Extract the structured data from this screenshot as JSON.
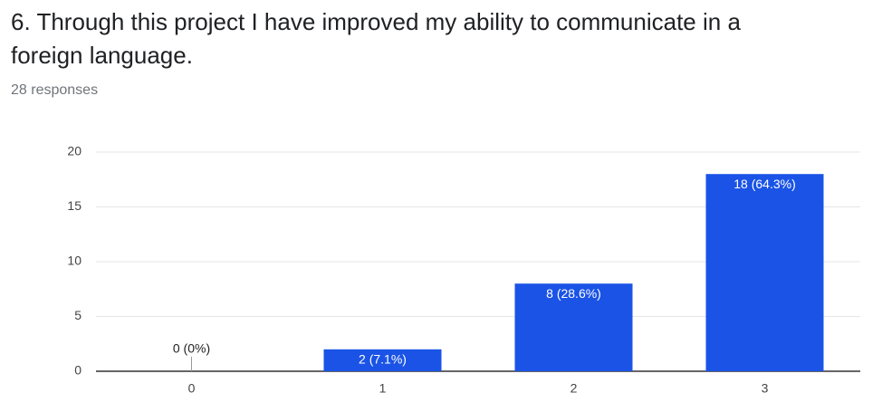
{
  "chart_data": {
    "type": "bar",
    "title": "6. Through this project I have improved my ability to communicate in a foreign language.",
    "subtitle": "28 responses",
    "categories": [
      "0",
      "1",
      "2",
      "3"
    ],
    "values": [
      0,
      2,
      8,
      18
    ],
    "value_labels": [
      "0 (0%)",
      "2 (7.1%)",
      "8 (28.6%)",
      "18 (64.3%)"
    ],
    "color": "#1a53e6",
    "ylim": [
      0,
      20
    ],
    "yticks": [
      0,
      5,
      10,
      15,
      20
    ],
    "grid": true
  }
}
